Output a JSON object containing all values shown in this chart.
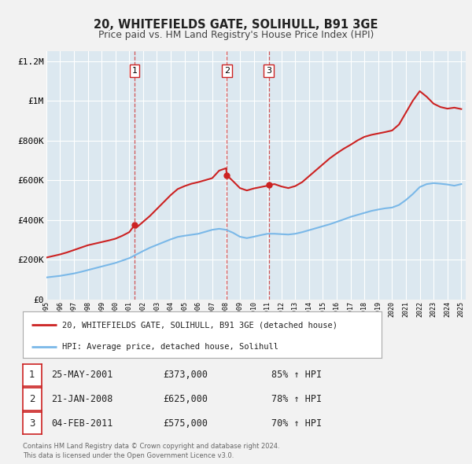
{
  "title": "20, WHITEFIELDS GATE, SOLIHULL, B91 3GE",
  "subtitle": "Price paid vs. HM Land Registry's House Price Index (HPI)",
  "background_color": "#f2f2f2",
  "plot_bg_color": "#dce8f0",
  "hpi_line_color": "#7ab8e8",
  "price_line_color": "#cc2222",
  "ylim": [
    0,
    1250000
  ],
  "yticks": [
    0,
    200000,
    400000,
    600000,
    800000,
    1000000,
    1200000
  ],
  "ytick_labels": [
    "£0",
    "£200K",
    "£400K",
    "£600K",
    "£800K",
    "£1M",
    "£1.2M"
  ],
  "sale_dates": [
    2001.38,
    2008.05,
    2011.09
  ],
  "sale_prices": [
    373000,
    625000,
    575000
  ],
  "sale_labels": [
    "1",
    "2",
    "3"
  ],
  "legend_entries": [
    "20, WHITEFIELDS GATE, SOLIHULL, B91 3GE (detached house)",
    "HPI: Average price, detached house, Solihull"
  ],
  "table_rows": [
    {
      "num": "1",
      "date": "25-MAY-2001",
      "price": "£373,000",
      "hpi": "85% ↑ HPI"
    },
    {
      "num": "2",
      "date": "21-JAN-2008",
      "price": "£625,000",
      "hpi": "78% ↑ HPI"
    },
    {
      "num": "3",
      "date": "04-FEB-2011",
      "price": "£575,000",
      "hpi": "70% ↑ HPI"
    }
  ],
  "footer": "Contains HM Land Registry data © Crown copyright and database right 2024.\nThis data is licensed under the Open Government Licence v3.0.",
  "hpi_x": [
    1995.0,
    1995.5,
    1996.0,
    1996.5,
    1997.0,
    1997.5,
    1998.0,
    1998.5,
    1999.0,
    1999.5,
    2000.0,
    2000.5,
    2001.0,
    2001.5,
    2002.0,
    2002.5,
    2003.0,
    2003.5,
    2004.0,
    2004.5,
    2005.0,
    2005.5,
    2006.0,
    2006.5,
    2007.0,
    2007.5,
    2008.0,
    2008.5,
    2009.0,
    2009.5,
    2010.0,
    2010.5,
    2011.0,
    2011.5,
    2012.0,
    2012.5,
    2013.0,
    2013.5,
    2014.0,
    2014.5,
    2015.0,
    2015.5,
    2016.0,
    2016.5,
    2017.0,
    2017.5,
    2018.0,
    2018.5,
    2019.0,
    2019.5,
    2020.0,
    2020.5,
    2021.0,
    2021.5,
    2022.0,
    2022.5,
    2023.0,
    2023.5,
    2024.0,
    2024.5,
    2025.0
  ],
  "hpi_y": [
    110000,
    114000,
    118000,
    124000,
    130000,
    138000,
    147000,
    156000,
    165000,
    174000,
    183000,
    195000,
    207000,
    225000,
    243000,
    260000,
    274000,
    288000,
    302000,
    314000,
    320000,
    325000,
    330000,
    340000,
    350000,
    355000,
    350000,
    335000,
    315000,
    308000,
    315000,
    323000,
    330000,
    330000,
    328000,
    326000,
    330000,
    338000,
    348000,
    358000,
    368000,
    378000,
    390000,
    402000,
    415000,
    425000,
    435000,
    445000,
    452000,
    458000,
    462000,
    475000,
    500000,
    530000,
    565000,
    580000,
    585000,
    582000,
    578000,
    572000,
    580000
  ],
  "price_x": [
    1995.0,
    1995.5,
    1996.0,
    1996.5,
    1997.0,
    1997.5,
    1998.0,
    1998.5,
    1999.0,
    1999.5,
    2000.0,
    2000.5,
    2001.0,
    2001.38,
    2001.5,
    2002.0,
    2002.5,
    2003.0,
    2003.5,
    2004.0,
    2004.5,
    2005.0,
    2005.5,
    2006.0,
    2006.5,
    2007.0,
    2007.5,
    2008.0,
    2008.05,
    2008.5,
    2009.0,
    2009.5,
    2010.0,
    2010.5,
    2011.0,
    2011.09,
    2011.5,
    2012.0,
    2012.5,
    2013.0,
    2013.5,
    2014.0,
    2014.5,
    2015.0,
    2015.5,
    2016.0,
    2016.5,
    2017.0,
    2017.5,
    2018.0,
    2018.5,
    2019.0,
    2019.5,
    2020.0,
    2020.5,
    2021.0,
    2021.5,
    2022.0,
    2022.5,
    2023.0,
    2023.5,
    2024.0,
    2024.5,
    2025.0
  ],
  "price_y": [
    210000,
    218000,
    226000,
    236000,
    248000,
    260000,
    272000,
    280000,
    288000,
    296000,
    305000,
    320000,
    338000,
    373000,
    360000,
    390000,
    420000,
    455000,
    490000,
    525000,
    555000,
    570000,
    582000,
    590000,
    600000,
    610000,
    648000,
    660000,
    625000,
    595000,
    560000,
    548000,
    558000,
    565000,
    572000,
    575000,
    580000,
    568000,
    560000,
    570000,
    590000,
    620000,
    650000,
    680000,
    710000,
    735000,
    758000,
    778000,
    800000,
    818000,
    828000,
    835000,
    842000,
    850000,
    880000,
    940000,
    1000000,
    1048000,
    1020000,
    985000,
    968000,
    960000,
    965000,
    958000
  ]
}
